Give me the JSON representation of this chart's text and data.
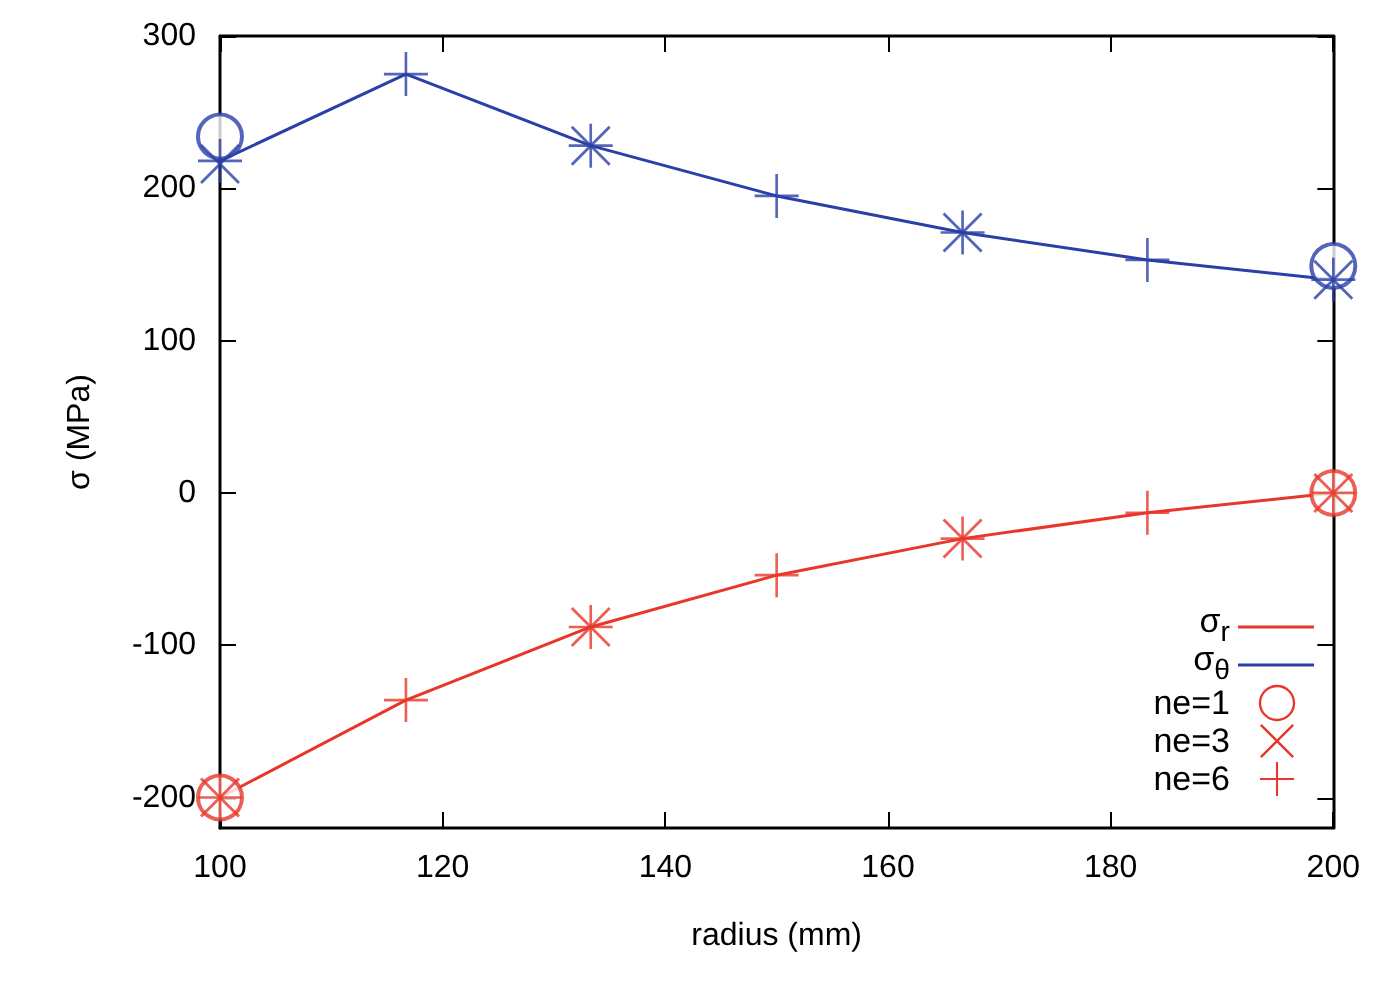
{
  "chart_data": {
    "type": "line",
    "xlabel": "radius (mm)",
    "ylabel": "σ (MPa)",
    "xlim": [
      100,
      200
    ],
    "xticks": [
      100,
      120,
      140,
      160,
      180,
      200
    ],
    "ylim": [
      -220,
      300
    ],
    "yticks": [
      -200,
      -100,
      0,
      100,
      200,
      300
    ],
    "grid": false,
    "legend": "bottom right",
    "series": [
      {
        "name": "σ$_{r}$",
        "marker": "none",
        "color": "#e8372a",
        "x": [
          100,
          116.7,
          133.3,
          150,
          166.7,
          183.3,
          200
        ],
        "values": [
          -200,
          -136,
          -88,
          -54,
          -30,
          -13,
          0
        ]
      },
      {
        "name": "σ$_{θ}$",
        "marker": "none",
        "color": "#2b3fa8",
        "x": [
          100,
          116.7,
          133.3,
          150,
          166.7,
          183.3,
          200
        ],
        "values": [
          218,
          275,
          228,
          195,
          171,
          153,
          140
        ]
      },
      {
        "name": "ne=1",
        "type": "scatter",
        "marker": "circle",
        "color": "#e8372a",
        "x": [
          100,
          200
        ],
        "values": [
          -200,
          0
        ]
      },
      {
        "name": "ne=3",
        "type": "scatter",
        "marker": "cross",
        "color": "#e8372a",
        "x": [
          100,
          133.3,
          166.7,
          200
        ],
        "values": [
          -200,
          -88,
          -30,
          0
        ]
      },
      {
        "name": "ne=6",
        "type": "scatter",
        "marker": "plus",
        "color": "#e8372a",
        "x": [
          100,
          116.7,
          133.3,
          150,
          166.7,
          183.3,
          200
        ],
        "values": [
          -200,
          -136,
          -88,
          -54,
          -30,
          -13,
          0
        ]
      },
      {
        "type": "scatter",
        "marker": "circle",
        "color": "#2b3fa8",
        "x": [
          100,
          200
        ],
        "values": [
          234,
          149
        ]
      },
      {
        "type": "scatter",
        "marker": "cross",
        "color": "#2b3fa8",
        "x": [
          100,
          133.3,
          166.7,
          200
        ],
        "values": [
          216,
          228,
          171,
          140
        ]
      },
      {
        "type": "scatter",
        "marker": "plus",
        "color": "#2b3fa8",
        "x": [
          100,
          116.7,
          133.3,
          150,
          166.7,
          183.3,
          200
        ],
        "values": [
          218,
          275,
          228,
          195,
          171,
          153,
          140
        ]
      }
    ]
  }
}
